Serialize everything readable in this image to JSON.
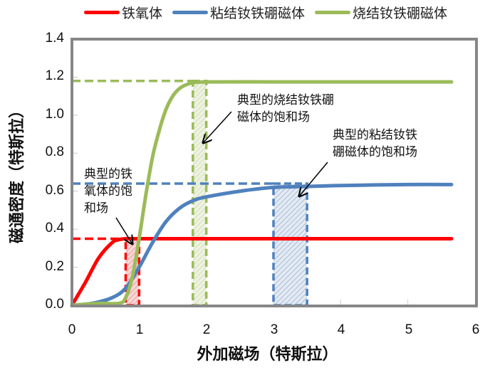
{
  "legend": [
    {
      "label": "铁氧体",
      "color": "#ff0000"
    },
    {
      "label": "粘结钕铁硼磁体",
      "color": "#4f81bd"
    },
    {
      "label": "烧结钕铁硼磁体",
      "color": "#9bbb59"
    }
  ],
  "axes": {
    "xlabel": "外加磁场（特斯拉）",
    "ylabel": "磁通密度（特斯拉）",
    "xticks": [
      "0",
      "1",
      "2",
      "3",
      "4",
      "5",
      "6"
    ],
    "yticks": [
      "0.0",
      "0.2",
      "0.4",
      "0.6",
      "0.8",
      "1.0",
      "1.2",
      "1.4"
    ]
  },
  "annotations": {
    "ferrite": "典型的铁\n氧体的饱\n和场",
    "sintered": "典型的烧结钕铁硼\n磁体的饱和场",
    "bonded": "典型的粘结钕铁\n硼磁体的饱和场"
  },
  "chart_data": {
    "type": "line",
    "title": "",
    "xlabel": "外加磁场（特斯拉）",
    "ylabel": "磁通密度（特斯拉）",
    "xlim": [
      0,
      6
    ],
    "ylim": [
      0,
      1.4
    ],
    "grid": false,
    "legend_position": "top",
    "series": [
      {
        "name": "铁氧体",
        "color": "#ff0000",
        "x": [
          0,
          0.2,
          0.4,
          0.6,
          0.7,
          0.8,
          1.0,
          2.0,
          3.0,
          4.0,
          5.0,
          5.65
        ],
        "y": [
          0.0,
          0.12,
          0.25,
          0.33,
          0.345,
          0.35,
          0.35,
          0.35,
          0.35,
          0.35,
          0.35,
          0.35
        ]
      },
      {
        "name": "粘结钕铁硼磁体",
        "color": "#4f81bd",
        "x": [
          0,
          0.3,
          0.6,
          0.8,
          1.0,
          1.2,
          1.4,
          1.6,
          1.8,
          2.0,
          2.5,
          3.0,
          3.5,
          4.0,
          5.0,
          5.65
        ],
        "y": [
          0.0,
          0.01,
          0.04,
          0.09,
          0.2,
          0.33,
          0.44,
          0.51,
          0.55,
          0.57,
          0.6,
          0.62,
          0.625,
          0.63,
          0.635,
          0.635
        ]
      },
      {
        "name": "烧结钕铁硼磁体",
        "color": "#9bbb59",
        "x": [
          0,
          0.4,
          0.7,
          0.8,
          0.9,
          1.0,
          1.1,
          1.2,
          1.3,
          1.4,
          1.5,
          1.6,
          1.7,
          1.8,
          2.0,
          3.0,
          4.0,
          5.0,
          5.65
        ],
        "y": [
          0.0,
          0.01,
          0.01,
          0.04,
          0.15,
          0.35,
          0.58,
          0.78,
          0.92,
          1.03,
          1.1,
          1.14,
          1.16,
          1.17,
          1.175,
          1.175,
          1.175,
          1.175,
          1.175
        ]
      }
    ],
    "saturation_markers": [
      {
        "name": "铁氧体饱和场",
        "color": "#ff0000",
        "x_range": [
          0.8,
          1.0
        ],
        "level": 0.35
      },
      {
        "name": "烧结钕铁硼饱和场",
        "color": "#9bbb59",
        "x_range": [
          1.8,
          2.0
        ],
        "level": 1.18
      },
      {
        "name": "粘结钕铁硼饱和场",
        "color": "#4f81bd",
        "x_range": [
          3.0,
          3.5
        ],
        "level": 0.64
      }
    ]
  }
}
